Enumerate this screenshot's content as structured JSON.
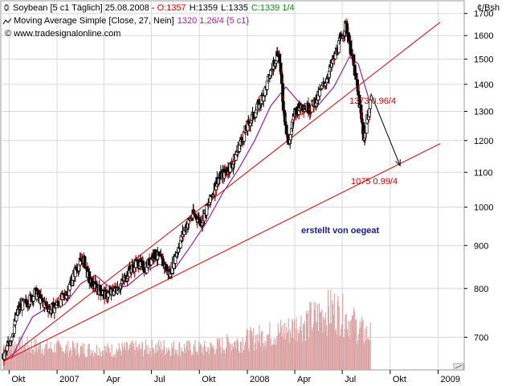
{
  "header": {
    "line1_prefix": "Soybean [5 c1  Täglich] 25.08.2008 - ",
    "open": "O:1357",
    "high": "H:1359",
    "low": "L:1335",
    "close": "C:1339 1/4",
    "ma_label": "Moving Average Simple [Close, 27, Nein]",
    "ma_value": "1320 1,26/4 {5 c1}",
    "copyright": "© www.tradesignalonline.com"
  },
  "annotations": {
    "upper_target": "1373 0.96/4",
    "lower_target": "1075 0.99/4",
    "author": "erstellt von oegeat"
  },
  "colors": {
    "price": "#000000",
    "up_candle": "#ffffff",
    "down_candle": "#000000",
    "wick_red": "#cc0000",
    "moving_average": "#9b1f9b",
    "trendline": "#e00000",
    "volume": "#d8a0a0",
    "open_color": "#cc0000",
    "close_color": "#009000",
    "annotation_blue": "#1a1a8c",
    "annotation_red": "#cc0000",
    "grid": "#d8d8d8"
  },
  "chart_data": {
    "type": "candlestick",
    "y_unit": "¢/Bsh",
    "yticks": [
      700,
      800,
      900,
      1000,
      1100,
      1200,
      1300,
      1400,
      1500,
      1600,
      1700
    ],
    "ylim": [
      640,
      1760
    ],
    "x_tick_labels": [
      {
        "label": "Okt",
        "date": "2006-10-01"
      },
      {
        "label": "2007",
        "date": "2007-01-01"
      },
      {
        "label": "Apr",
        "date": "2007-04-01"
      },
      {
        "label": "Jul",
        "date": "2007-07-01"
      },
      {
        "label": "Okt",
        "date": "2007-10-01"
      },
      {
        "label": "2008",
        "date": "2008-01-01"
      },
      {
        "label": "Apr",
        "date": "2008-04-01"
      },
      {
        "label": "Jul",
        "date": "2008-07-01"
      },
      {
        "label": "Okt",
        "date": "2008-10-01"
      },
      {
        "label": "2009",
        "date": "2009-01-01"
      }
    ],
    "xlim": [
      "2006-09-15",
      "2009-02-20"
    ],
    "price_close_path": [
      [
        "2006-09-20",
        660
      ],
      [
        "2006-10-05",
        700
      ],
      [
        "2006-10-20",
        760
      ],
      [
        "2006-11-05",
        770
      ],
      [
        "2006-11-20",
        790
      ],
      [
        "2006-12-05",
        770
      ],
      [
        "2006-12-20",
        755
      ],
      [
        "2007-01-05",
        770
      ],
      [
        "2007-01-20",
        790
      ],
      [
        "2007-02-05",
        840
      ],
      [
        "2007-02-20",
        870
      ],
      [
        "2007-03-05",
        815
      ],
      [
        "2007-03-20",
        800
      ],
      [
        "2007-04-05",
        785
      ],
      [
        "2007-04-20",
        795
      ],
      [
        "2007-05-05",
        810
      ],
      [
        "2007-05-20",
        840
      ],
      [
        "2007-06-05",
        860
      ],
      [
        "2007-06-20",
        845
      ],
      [
        "2007-07-05",
        880
      ],
      [
        "2007-07-20",
        865
      ],
      [
        "2007-08-05",
        830
      ],
      [
        "2007-08-20",
        890
      ],
      [
        "2007-09-05",
        950
      ],
      [
        "2007-09-20",
        980
      ],
      [
        "2007-10-05",
        960
      ],
      [
        "2007-10-20",
        1010
      ],
      [
        "2007-11-05",
        1080
      ],
      [
        "2007-11-20",
        1100
      ],
      [
        "2007-12-05",
        1130
      ],
      [
        "2007-12-20",
        1200
      ],
      [
        "2008-01-05",
        1260
      ],
      [
        "2008-01-20",
        1310
      ],
      [
        "2008-02-05",
        1380
      ],
      [
        "2008-02-20",
        1480
      ],
      [
        "2008-03-01",
        1540
      ],
      [
        "2008-03-10",
        1320
      ],
      [
        "2008-03-20",
        1180
      ],
      [
        "2008-04-01",
        1300
      ],
      [
        "2008-04-15",
        1320
      ],
      [
        "2008-05-01",
        1310
      ],
      [
        "2008-05-15",
        1350
      ],
      [
        "2008-06-01",
        1420
      ],
      [
        "2008-06-15",
        1500
      ],
      [
        "2008-07-01",
        1600
      ],
      [
        "2008-07-08",
        1650
      ],
      [
        "2008-07-15",
        1570
      ],
      [
        "2008-07-25",
        1450
      ],
      [
        "2008-08-05",
        1300
      ],
      [
        "2008-08-12",
        1200
      ],
      [
        "2008-08-18",
        1270
      ],
      [
        "2008-08-25",
        1339
      ]
    ],
    "moving_average_path": [
      [
        "2006-10-05",
        660
      ],
      [
        "2006-10-25",
        700
      ],
      [
        "2006-11-15",
        740
      ],
      [
        "2006-12-15",
        760
      ],
      [
        "2007-01-15",
        765
      ],
      [
        "2007-02-15",
        810
      ],
      [
        "2007-03-15",
        830
      ],
      [
        "2007-04-15",
        800
      ],
      [
        "2007-05-15",
        805
      ],
      [
        "2007-06-15",
        835
      ],
      [
        "2007-07-15",
        855
      ],
      [
        "2007-08-15",
        845
      ],
      [
        "2007-09-15",
        900
      ],
      [
        "2007-10-15",
        960
      ],
      [
        "2007-11-15",
        1040
      ],
      [
        "2007-12-15",
        1110
      ],
      [
        "2008-01-15",
        1200
      ],
      [
        "2008-02-15",
        1320
      ],
      [
        "2008-03-15",
        1390
      ],
      [
        "2008-04-15",
        1320
      ],
      [
        "2008-05-15",
        1320
      ],
      [
        "2008-06-15",
        1390
      ],
      [
        "2008-07-15",
        1510
      ],
      [
        "2008-08-01",
        1480
      ],
      [
        "2008-08-25",
        1320
      ]
    ],
    "trendlines": [
      {
        "from": [
          "2006-09-20",
          655
        ],
        "to": [
          "2009-01-05",
          1660
        ]
      },
      {
        "from": [
          "2006-09-20",
          655
        ],
        "to": [
          "2009-01-05",
          1190
        ]
      }
    ],
    "arrow": {
      "from": [
        "2008-08-25",
        1365
      ],
      "to": [
        "2008-10-20",
        1120
      ]
    },
    "volume_shape": [
      [
        "2006-10",
        0.35
      ],
      [
        "2007-01",
        0.3
      ],
      [
        "2007-04",
        0.28
      ],
      [
        "2007-07",
        0.32
      ],
      [
        "2007-10",
        0.3
      ],
      [
        "2008-01",
        0.45
      ],
      [
        "2008-03",
        0.55
      ],
      [
        "2008-05",
        0.75
      ],
      [
        "2008-06",
        0.85
      ],
      [
        "2008-07",
        0.7
      ],
      [
        "2008-08",
        0.5
      ]
    ]
  }
}
